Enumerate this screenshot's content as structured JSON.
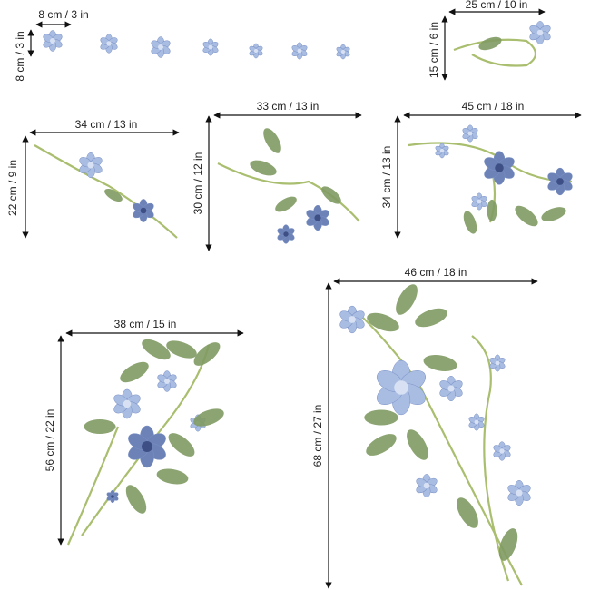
{
  "decals": [
    {
      "width_label": "8 cm / 3 in",
      "height_label": "8 cm / 3 in"
    },
    {
      "width_label": "25 cm / 10 in",
      "height_label": "15 cm / 6 in"
    },
    {
      "width_label": "34 cm / 13 in",
      "height_label": "22 cm / 9 in"
    },
    {
      "width_label": "33 cm / 13 in",
      "height_label": "30 cm / 12 in"
    },
    {
      "width_label": "45 cm / 18 in",
      "height_label": "34 cm / 13 in"
    },
    {
      "width_label": "46 cm / 18 in",
      "height_label": "68 cm / 27 in"
    },
    {
      "width_label": "38 cm / 15 in",
      "height_label": "56 cm / 22 in"
    }
  ]
}
